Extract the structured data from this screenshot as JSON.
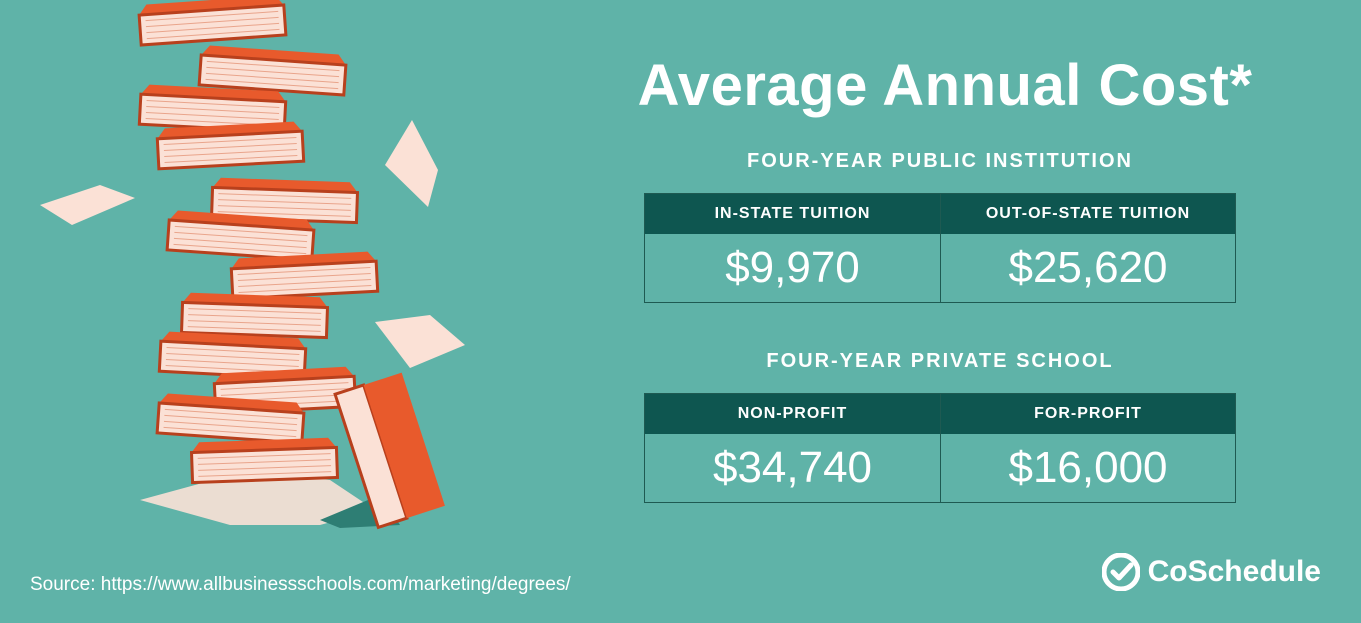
{
  "title": "Average Annual Cost*",
  "public_section": {
    "heading": "FOUR-YEAR PUBLIC INSTITUTION",
    "columns": [
      {
        "label": "IN-STATE TUITION",
        "value": "$9,970"
      },
      {
        "label": "OUT-OF-STATE TUITION",
        "value": "$25,620"
      }
    ]
  },
  "private_section": {
    "heading": "FOUR-YEAR PRIVATE SCHOOL",
    "columns": [
      {
        "label": "NON-PROFIT",
        "value": "$34,740"
      },
      {
        "label": "FOR-PROFIT",
        "value": "$16,000"
      }
    ]
  },
  "source": "Source: https://www.allbusinessschools.com/marketing/degrees/",
  "logo": {
    "text": "CoSchedule",
    "icon": "checkmark-circle-icon"
  },
  "colors": {
    "background": "#5fb3a8",
    "table_header": "#0e5650",
    "book_cover": "#e85a2c",
    "book_pages": "#fbe1d6"
  }
}
